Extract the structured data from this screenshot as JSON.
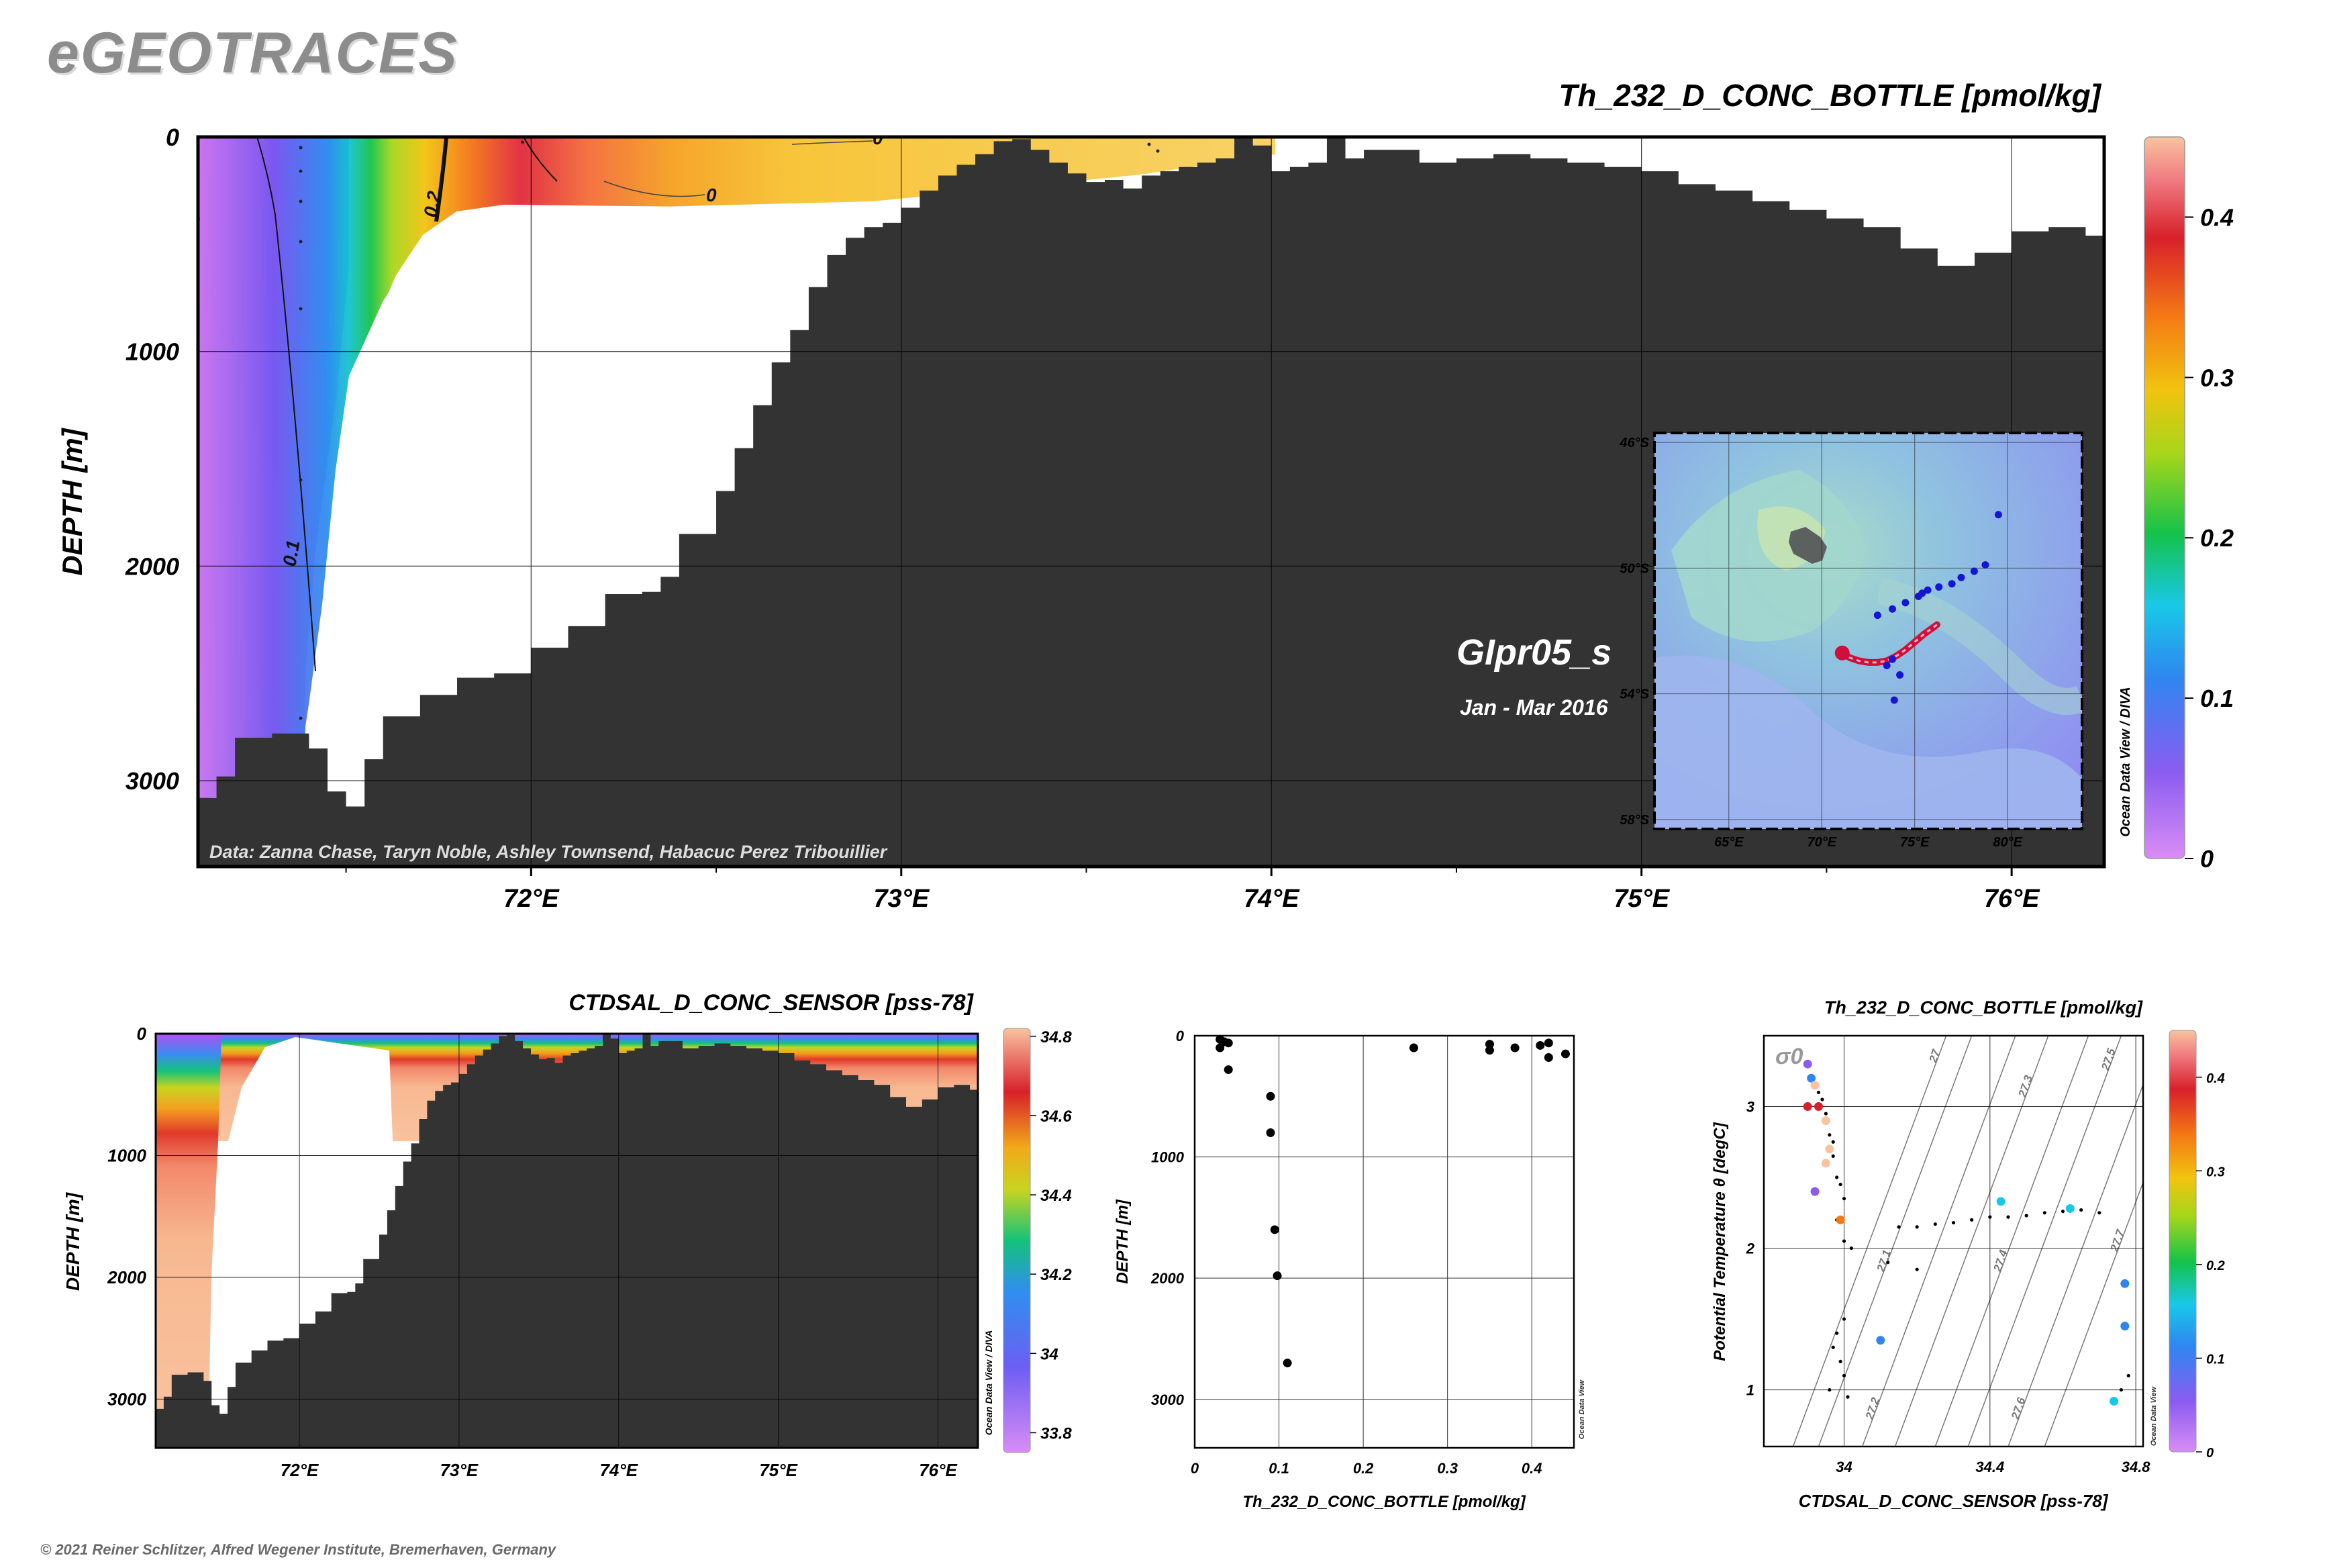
{
  "app_title": "eGEOTRACES",
  "copyright": "© 2021 Reiner Schlitzer, Alfred Wegener Institute, Bremerhaven, Germany",
  "cruise": {
    "name": "GIpr05_s",
    "period": "Jan - Mar 2016"
  },
  "credits": "Data: Zanna Chase, Taryn Noble, Ashley Townsend, Habacuc Perez Tribouillier",
  "watermark": "Ocean Data View / DIVA",
  "watermark_small": "Ocean Data View",
  "colors": {
    "bathymetry": "#333333",
    "accent_track": "#d0103a",
    "station_dot": "#1515d6",
    "grid": "#000000"
  },
  "chart_data": [
    {
      "id": "main-section",
      "type": "heatmap",
      "title": "Th_232_D_CONC_BOTTLE [pmol/kg]",
      "ylabel": "DEPTH [m]",
      "xlabel": "",
      "xlim": [
        71.1,
        76.25
      ],
      "ylim": [
        3400,
        0
      ],
      "xticks": [
        "72°E",
        "73°E",
        "74°E",
        "75°E",
        "76°E"
      ],
      "xtick_values": [
        72,
        73,
        74,
        75,
        76
      ],
      "yticks": [
        "0",
        "1000",
        "2000",
        "3000"
      ],
      "ytick_values": [
        0,
        1000,
        2000,
        3000
      ],
      "contours": [
        "0",
        "0.1",
        "0.2",
        ".3",
        "0",
        "0"
      ],
      "colorbar": {
        "min": 0,
        "max": 0.45,
        "ticks": [
          "0",
          "0.1",
          "0.2",
          "0.3",
          "0.4"
        ],
        "tick_values": [
          0,
          0.1,
          0.2,
          0.3,
          0.4
        ]
      },
      "seafloor": [
        [
          71.1,
          3080
        ],
        [
          71.15,
          2980
        ],
        [
          71.2,
          2800
        ],
        [
          71.3,
          2780
        ],
        [
          71.4,
          2850
        ],
        [
          71.45,
          3050
        ],
        [
          71.5,
          3120
        ],
        [
          71.55,
          2900
        ],
        [
          71.6,
          2700
        ],
        [
          71.7,
          2600
        ],
        [
          71.8,
          2520
        ],
        [
          71.9,
          2500
        ],
        [
          72.0,
          2380
        ],
        [
          72.1,
          2280
        ],
        [
          72.2,
          2130
        ],
        [
          72.3,
          2120
        ],
        [
          72.35,
          2050
        ],
        [
          72.4,
          1850
        ],
        [
          72.5,
          1650
        ],
        [
          72.55,
          1450
        ],
        [
          72.6,
          1250
        ],
        [
          72.65,
          1050
        ],
        [
          72.7,
          900
        ],
        [
          72.75,
          700
        ],
        [
          72.8,
          550
        ],
        [
          72.85,
          470
        ],
        [
          72.9,
          420
        ],
        [
          72.95,
          400
        ],
        [
          73.0,
          330
        ],
        [
          73.05,
          250
        ],
        [
          73.1,
          180
        ],
        [
          73.15,
          130
        ],
        [
          73.2,
          80
        ],
        [
          73.25,
          20
        ],
        [
          73.3,
          10
        ],
        [
          73.35,
          60
        ],
        [
          73.4,
          120
        ],
        [
          73.45,
          170
        ],
        [
          73.5,
          210
        ],
        [
          73.55,
          200
        ],
        [
          73.6,
          240
        ],
        [
          73.65,
          180
        ],
        [
          73.7,
          160
        ],
        [
          73.75,
          140
        ],
        [
          73.8,
          120
        ],
        [
          73.85,
          100
        ],
        [
          73.9,
          0
        ],
        [
          73.95,
          40
        ],
        [
          74.0,
          160
        ],
        [
          74.05,
          140
        ],
        [
          74.1,
          120
        ],
        [
          74.15,
          0
        ],
        [
          74.2,
          100
        ],
        [
          74.25,
          60
        ],
        [
          74.3,
          60
        ],
        [
          74.4,
          120
        ],
        [
          74.5,
          100
        ],
        [
          74.6,
          80
        ],
        [
          74.7,
          100
        ],
        [
          74.8,
          120
        ],
        [
          74.9,
          140
        ],
        [
          75.0,
          160
        ],
        [
          75.1,
          220
        ],
        [
          75.2,
          250
        ],
        [
          75.3,
          300
        ],
        [
          75.4,
          340
        ],
        [
          75.5,
          380
        ],
        [
          75.6,
          420
        ],
        [
          75.7,
          520
        ],
        [
          75.8,
          600
        ],
        [
          75.9,
          540
        ],
        [
          76.0,
          440
        ],
        [
          76.1,
          420
        ],
        [
          76.2,
          460
        ],
        [
          76.3,
          520
        ],
        [
          76.4,
          560
        ],
        [
          76.5,
          600
        ],
        [
          76.6,
          680
        ],
        [
          76.7,
          720
        ],
        [
          76.8,
          750
        ],
        [
          76.9,
          790
        ],
        [
          77.0,
          820
        ]
      ]
    },
    {
      "id": "salinity-section",
      "type": "heatmap",
      "title": "CTDSAL_D_CONC_SENSOR [pss-78]",
      "ylabel": "DEPTH [m]",
      "xlabel": "",
      "xlim": [
        71.1,
        76.25
      ],
      "ylim": [
        3400,
        0
      ],
      "xticks": [
        "72°E",
        "73°E",
        "74°E",
        "75°E",
        "76°E"
      ],
      "xtick_values": [
        72,
        73,
        74,
        75,
        76
      ],
      "yticks": [
        "0",
        "1000",
        "2000",
        "3000"
      ],
      "ytick_values": [
        0,
        1000,
        2000,
        3000
      ],
      "colorbar": {
        "min": 33.75,
        "max": 34.82,
        "ticks": [
          "33.8",
          "34",
          "34.2",
          "34.4",
          "34.6",
          "34.8"
        ],
        "tick_values": [
          33.8,
          34,
          34.2,
          34.4,
          34.6,
          34.8
        ]
      }
    },
    {
      "id": "profile",
      "type": "scatter",
      "xlabel": "Th_232_D_CONC_BOTTLE [pmol/kg]",
      "ylabel": "DEPTH [m]",
      "xlim": [
        0,
        0.45
      ],
      "ylim": [
        3400,
        0
      ],
      "xticks": [
        "0",
        "0.1",
        "0.2",
        "0.3",
        "0.4"
      ],
      "xtick_values": [
        0,
        0.1,
        0.2,
        0.3,
        0.4
      ],
      "yticks": [
        "0",
        "1000",
        "2000",
        "3000"
      ],
      "ytick_values": [
        0,
        1000,
        2000,
        3000
      ],
      "points": [
        [
          0.03,
          30
        ],
        [
          0.035,
          50
        ],
        [
          0.04,
          60
        ],
        [
          0.03,
          100
        ],
        [
          0.04,
          280
        ],
        [
          0.09,
          500
        ],
        [
          0.09,
          800
        ],
        [
          0.095,
          1600
        ],
        [
          0.098,
          1980
        ],
        [
          0.11,
          2700
        ],
        [
          0.26,
          100
        ],
        [
          0.35,
          70
        ],
        [
          0.35,
          120
        ],
        [
          0.38,
          100
        ],
        [
          0.41,
          80
        ],
        [
          0.42,
          60
        ],
        [
          0.42,
          180
        ],
        [
          0.44,
          150
        ]
      ]
    },
    {
      "id": "ts-diagram",
      "type": "scatter",
      "title": "Th_232_D_CONC_BOTTLE [pmol/kg]",
      "xlabel": "CTDSAL_D_CONC_SENSOR [pss-78]",
      "ylabel": "Potential Temperature θ [degC]",
      "xlim": [
        33.78,
        34.82
      ],
      "ylim": [
        0.6,
        3.5
      ],
      "xticks": [
        "34",
        "34.4",
        "34.8"
      ],
      "xtick_values": [
        34,
        34.4,
        34.8
      ],
      "yticks": [
        "1",
        "2",
        "3"
      ],
      "ytick_values": [
        1,
        2,
        3
      ],
      "sigma_label": "σ0",
      "isopycnals": [
        "27",
        "27.1",
        "27.2",
        "27.3",
        "27.4",
        "27.5",
        "27.6",
        "27.7"
      ],
      "colorbar": {
        "min": 0,
        "max": 0.45,
        "ticks": [
          "0",
          "0.1",
          "0.2",
          "0.3",
          "0.4"
        ],
        "tick_values": [
          0,
          0.1,
          0.2,
          0.3,
          0.4
        ]
      },
      "points": [
        {
          "s": 33.9,
          "t": 3.3,
          "v": 0.05
        },
        {
          "s": 33.91,
          "t": 3.2,
          "v": 0.08
        },
        {
          "s": 33.92,
          "t": 3.15,
          "v": 0.4
        },
        {
          "s": 33.93,
          "t": 3.0,
          "v": 0.38
        },
        {
          "s": 33.9,
          "t": 3.0,
          "v": 0.35
        },
        {
          "s": 33.95,
          "t": 2.9,
          "v": 0.42
        },
        {
          "s": 33.96,
          "t": 2.7,
          "v": 0.4
        },
        {
          "s": 33.95,
          "t": 2.6,
          "v": 0.41
        },
        {
          "s": 33.92,
          "t": 2.4,
          "v": 0.05
        },
        {
          "s": 33.99,
          "t": 2.2,
          "v": 0.33
        },
        {
          "s": 34.1,
          "t": 1.35,
          "v": 0.06
        },
        {
          "s": 34.43,
          "t": 2.33,
          "v": 0.12
        },
        {
          "s": 34.62,
          "t": 2.28,
          "v": 0.13
        },
        {
          "s": 34.77,
          "t": 1.75,
          "v": 0.11
        },
        {
          "s": 34.77,
          "t": 1.45,
          "v": 0.11
        },
        {
          "s": 34.74,
          "t": 0.92,
          "v": 0.12
        }
      ],
      "small_points": [
        [
          33.93,
          3.1
        ],
        [
          33.94,
          3.05
        ],
        [
          33.95,
          2.95
        ],
        [
          33.96,
          2.8
        ],
        [
          33.97,
          2.75
        ],
        [
          33.97,
          2.65
        ],
        [
          33.98,
          2.5
        ],
        [
          33.99,
          2.45
        ],
        [
          34.0,
          2.35
        ],
        [
          33.98,
          2.2
        ],
        [
          34.0,
          2.05
        ],
        [
          34.02,
          2.0
        ],
        [
          34.15,
          2.15
        ],
        [
          34.2,
          2.15
        ],
        [
          34.25,
          2.17
        ],
        [
          34.3,
          2.18
        ],
        [
          34.35,
          2.2
        ],
        [
          34.4,
          2.22
        ],
        [
          34.45,
          2.22
        ],
        [
          34.5,
          2.23
        ],
        [
          34.55,
          2.25
        ],
        [
          34.6,
          2.26
        ],
        [
          34.65,
          2.27
        ],
        [
          34.7,
          2.25
        ],
        [
          34.12,
          1.9
        ],
        [
          34.2,
          1.85
        ],
        [
          34.0,
          1.5
        ],
        [
          33.98,
          1.4
        ],
        [
          33.97,
          1.3
        ],
        [
          33.99,
          1.2
        ],
        [
          34.0,
          1.1
        ],
        [
          33.96,
          1.0
        ],
        [
          34.01,
          0.95
        ],
        [
          34.76,
          1.0
        ],
        [
          34.78,
          1.1
        ]
      ]
    },
    {
      "id": "inset-map",
      "type": "scatter",
      "xlim": [
        61,
        84
      ],
      "ylim": [
        -58.3,
        -45.7
      ],
      "xticks": [
        "65°E",
        "70°E",
        "75°E",
        "80°E"
      ],
      "xtick_values": [
        65,
        70,
        75,
        80
      ],
      "yticks": [
        "46°S",
        "50°S",
        "54°S",
        "58°S"
      ],
      "ytick_values": [
        -46,
        -50,
        -54,
        -58
      ],
      "stations": [
        [
          79.5,
          -48.3
        ],
        [
          78.8,
          -49.9
        ],
        [
          78.2,
          -50.1
        ],
        [
          77.5,
          -50.3
        ],
        [
          77.0,
          -50.5
        ],
        [
          76.3,
          -50.6
        ],
        [
          75.7,
          -50.7
        ],
        [
          75.4,
          -50.8
        ],
        [
          75.2,
          -50.9
        ],
        [
          74.5,
          -51.1
        ],
        [
          73.8,
          -51.3
        ],
        [
          73.0,
          -51.5
        ],
        [
          74.2,
          -53.4
        ],
        [
          73.8,
          -52.9
        ],
        [
          73.5,
          -53.1
        ],
        [
          73.9,
          -54.2
        ]
      ],
      "track": [
        [
          71.1,
          -52.7
        ],
        [
          71.5,
          -52.85
        ],
        [
          72.0,
          -52.95
        ],
        [
          72.5,
          -53.0
        ],
        [
          73.0,
          -53.0
        ],
        [
          73.5,
          -52.95
        ],
        [
          74.0,
          -52.8
        ],
        [
          74.5,
          -52.6
        ],
        [
          75.0,
          -52.35
        ],
        [
          75.5,
          -52.1
        ],
        [
          76.2,
          -51.8
        ]
      ]
    }
  ]
}
